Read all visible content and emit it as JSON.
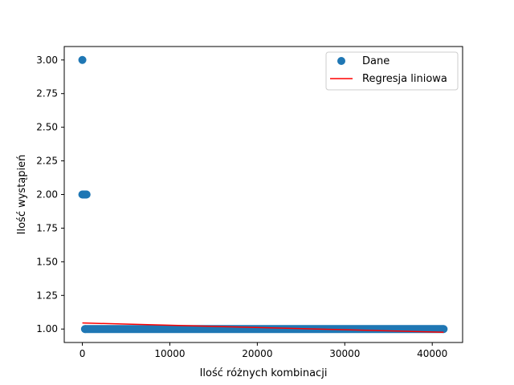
{
  "chart_data": {
    "type": "scatter",
    "xlabel": "Ilość różnych kombinacji",
    "ylabel": "Ilość wystąpień",
    "xlim": [
      -2070,
      43470
    ],
    "ylim": [
      0.9,
      3.1
    ],
    "x_ticks": [
      0,
      10000,
      20000,
      30000,
      40000
    ],
    "x_tick_labels": [
      "0",
      "10000",
      "20000",
      "30000",
      "40000"
    ],
    "y_ticks": [
      1.0,
      1.25,
      1.5,
      1.75,
      2.0,
      2.25,
      2.5,
      2.75,
      3.0
    ],
    "y_tick_labels": [
      "1.00",
      "1.25",
      "1.50",
      "1.75",
      "2.00",
      "2.25",
      "2.50",
      "2.75",
      "3.00"
    ],
    "grid": false,
    "legend": {
      "placement": "top-right"
    },
    "series": [
      {
        "name": "Dane",
        "kind": "scatter",
        "color": "#1f77b4",
        "points": [
          {
            "x": 0,
            "y": 3.0
          },
          {
            "x": 0,
            "y": 2.0
          },
          {
            "x": 60,
            "y": 2.0
          },
          {
            "x": 120,
            "y": 2.0
          },
          {
            "x": 180,
            "y": 2.0
          },
          {
            "x": 240,
            "y": 2.0
          },
          {
            "x": 300,
            "y": 2.0
          },
          {
            "x": 360,
            "y": 2.0
          },
          {
            "x": 420,
            "y": 2.0
          },
          {
            "x": 480,
            "y": 2.0
          }
        ],
        "dense_ranges": [
          {
            "x_start": 300,
            "x_end": 41300,
            "y": 1.0
          }
        ]
      },
      {
        "name": "Regresja liniowa",
        "kind": "line",
        "color": "#ff0000",
        "points": [
          {
            "x": 0,
            "y": 1.045
          },
          {
            "x": 41300,
            "y": 0.976
          }
        ]
      }
    ]
  }
}
